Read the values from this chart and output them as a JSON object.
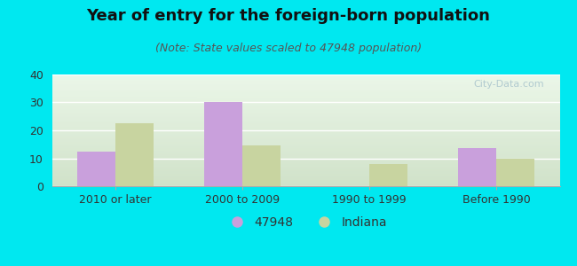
{
  "title": "Year of entry for the foreign-born population",
  "subtitle": "(Note: State values scaled to 47948 population)",
  "categories": [
    "2010 or later",
    "2000 to 2009",
    "1990 to 1999",
    "Before 1990"
  ],
  "series_47948": [
    12.5,
    30.0,
    0,
    13.5
  ],
  "series_indiana": [
    22.5,
    14.5,
    8.0,
    10.0
  ],
  "bar_color_47948": "#c9a0dc",
  "bar_color_indiana": "#c8d4a0",
  "background_outer": "#00e8f0",
  "background_chart_topleft": "#f0f8f0",
  "background_chart_bottomright": "#e0eed8",
  "ylim": [
    0,
    40
  ],
  "yticks": [
    0,
    10,
    20,
    30,
    40
  ],
  "bar_width": 0.3,
  "legend_label_1": "47948",
  "legend_label_2": "Indiana",
  "title_fontsize": 13,
  "subtitle_fontsize": 9,
  "tick_fontsize": 9,
  "legend_fontsize": 10
}
